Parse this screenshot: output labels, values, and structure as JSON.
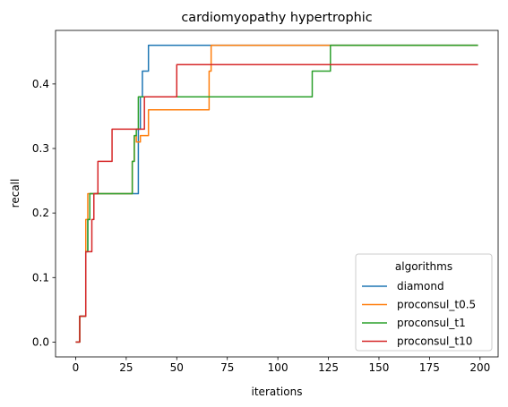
{
  "chart_data": {
    "type": "line",
    "title": "cardiomyopathy hypertrophic",
    "xlabel": "iterations",
    "ylabel": "recall",
    "xlim": [
      -9.95,
      208.95
    ],
    "ylim": [
      -0.023,
      0.483
    ],
    "xticks": [
      0,
      25,
      50,
      75,
      100,
      125,
      150,
      175,
      200
    ],
    "yticks": [
      0.0,
      0.1,
      0.2,
      0.3,
      0.4
    ],
    "xtick_labels": [
      "0",
      "25",
      "50",
      "75",
      "100",
      "125",
      "150",
      "175",
      "200"
    ],
    "ytick_labels": [
      "0.0",
      "0.1",
      "0.2",
      "0.3",
      "0.4"
    ],
    "grid": false,
    "legend": {
      "title": "algorithms",
      "placement": "lower-right"
    },
    "series": [
      {
        "name": "diamond",
        "color": "#1f77b4",
        "points": [
          [
            0,
            0
          ],
          [
            2,
            0
          ],
          [
            2,
            0.04
          ],
          [
            4,
            0.04
          ],
          [
            4,
            0.04
          ],
          [
            5,
            0.04
          ],
          [
            5,
            0.14
          ],
          [
            6,
            0.14
          ],
          [
            6,
            0.19
          ],
          [
            7,
            0.19
          ],
          [
            7,
            0.23
          ],
          [
            31,
            0.23
          ],
          [
            31,
            0.33
          ],
          [
            32,
            0.33
          ],
          [
            32,
            0.38
          ],
          [
            33,
            0.38
          ],
          [
            33,
            0.42
          ],
          [
            36,
            0.42
          ],
          [
            36,
            0.46
          ],
          [
            199,
            0.46
          ]
        ]
      },
      {
        "name": "proconsul_t0.5",
        "color": "#ff7f0e",
        "points": [
          [
            0,
            0
          ],
          [
            2,
            0
          ],
          [
            2,
            0.04
          ],
          [
            5,
            0.04
          ],
          [
            5,
            0.19
          ],
          [
            6,
            0.19
          ],
          [
            6,
            0.23
          ],
          [
            28,
            0.23
          ],
          [
            28,
            0.28
          ],
          [
            29,
            0.28
          ],
          [
            29,
            0.32
          ],
          [
            30,
            0.32
          ],
          [
            30,
            0.31
          ],
          [
            32,
            0.31
          ],
          [
            32,
            0.32
          ],
          [
            36,
            0.32
          ],
          [
            36,
            0.36
          ],
          [
            66,
            0.36
          ],
          [
            66,
            0.42
          ],
          [
            67,
            0.42
          ],
          [
            67,
            0.46
          ],
          [
            199,
            0.46
          ]
        ]
      },
      {
        "name": "proconsul_t1",
        "color": "#2ca02c",
        "points": [
          [
            0,
            0
          ],
          [
            2,
            0
          ],
          [
            2,
            0.04
          ],
          [
            5,
            0.04
          ],
          [
            5,
            0.14
          ],
          [
            6,
            0.14
          ],
          [
            6,
            0.19
          ],
          [
            7,
            0.19
          ],
          [
            7,
            0.23
          ],
          [
            28,
            0.23
          ],
          [
            28,
            0.28
          ],
          [
            29,
            0.28
          ],
          [
            29,
            0.32
          ],
          [
            30,
            0.32
          ],
          [
            30,
            0.33
          ],
          [
            31,
            0.33
          ],
          [
            31,
            0.38
          ],
          [
            117,
            0.38
          ],
          [
            117,
            0.42
          ],
          [
            126,
            0.42
          ],
          [
            126,
            0.46
          ],
          [
            199,
            0.46
          ]
        ]
      },
      {
        "name": "proconsul_t10",
        "color": "#d62728",
        "points": [
          [
            0,
            0
          ],
          [
            2,
            0
          ],
          [
            2,
            0.04
          ],
          [
            5,
            0.04
          ],
          [
            5,
            0.14
          ],
          [
            8,
            0.14
          ],
          [
            8,
            0.19
          ],
          [
            9,
            0.19
          ],
          [
            9,
            0.23
          ],
          [
            11,
            0.23
          ],
          [
            11,
            0.28
          ],
          [
            18,
            0.28
          ],
          [
            18,
            0.33
          ],
          [
            34,
            0.33
          ],
          [
            34,
            0.38
          ],
          [
            50,
            0.38
          ],
          [
            50,
            0.43
          ],
          [
            199,
            0.43
          ]
        ]
      }
    ]
  }
}
